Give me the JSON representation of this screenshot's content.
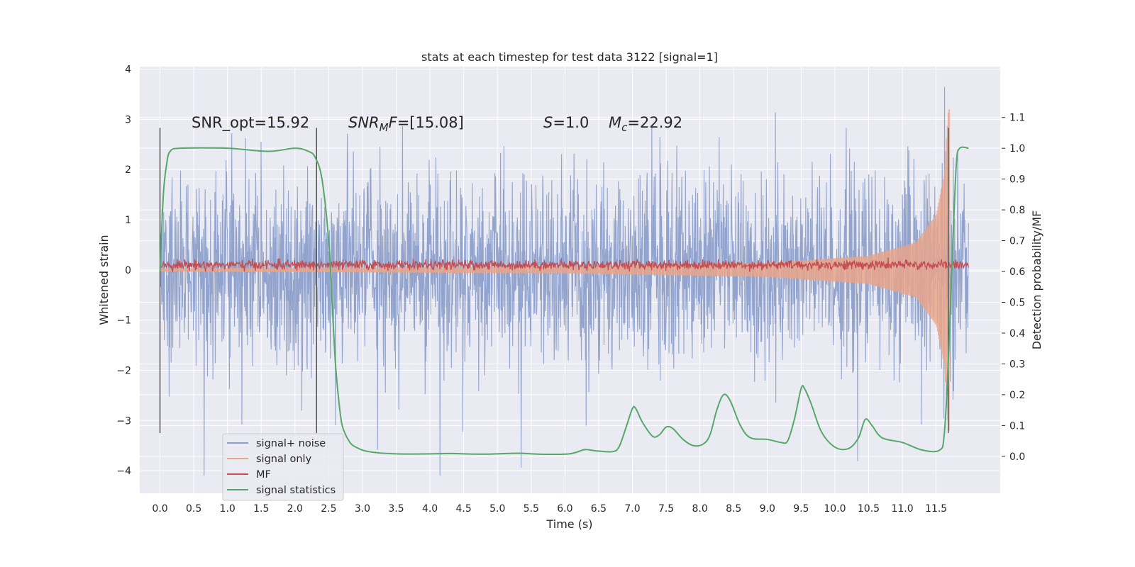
{
  "chart_data": {
    "type": "line",
    "title": "stats at each timestep for test data 3122 [signal=1]",
    "xlabel": "Time (s)",
    "ylabel": "Whitened strain",
    "y2label": "Detection probability/MF",
    "xlim": [
      -0.3,
      12.45
    ],
    "ylim": [
      -4.45,
      4.05
    ],
    "y2lim": [
      -0.12,
      1.265
    ],
    "x_ticks": [
      "0.0",
      "0.5",
      "1.0",
      "1.5",
      "2.0",
      "2.5",
      "3.0",
      "3.5",
      "4.0",
      "4.5",
      "5.0",
      "5.5",
      "6.0",
      "6.5",
      "7.0",
      "7.5",
      "8.0",
      "8.5",
      "9.0",
      "9.5",
      "10.0",
      "10.5",
      "11.0",
      "11.5"
    ],
    "y_ticks": [
      "−4",
      "−3",
      "−2",
      "−1",
      "0",
      "1",
      "2",
      "3",
      "4"
    ],
    "y2_ticks": [
      "0.0",
      "0.1",
      "0.2",
      "0.3",
      "0.4",
      "0.5",
      "0.6",
      "0.7",
      "0.8",
      "0.9",
      "1.0",
      "1.1"
    ],
    "grid": true,
    "legend_position": "lower-left",
    "annotations": {
      "snr_opt": "SNR_opt=15.92",
      "snr_mf_main": "SNR",
      "snr_mf_sub": "M",
      "snr_mf_rest_it": "F",
      "snr_mf_value": "=[15.08]",
      "s_main": "S",
      "s_value": "=1.0",
      "mc_main": "M",
      "mc_sub": "c",
      "mc_value": "=22.92"
    },
    "vertical_markers": [
      {
        "x": 0.0,
        "y": [
          -3.25,
          2.83
        ]
      },
      {
        "x": 2.32,
        "y": [
          -3.25,
          2.83
        ]
      },
      {
        "x": 11.68,
        "y": [
          -3.25,
          2.83
        ]
      }
    ],
    "series": [
      {
        "name": "signal+ noise",
        "color": "#8da0cb",
        "style": "dense noise band",
        "x_range": [
          0.0,
          11.98
        ],
        "envelope_typical": [
          -2.0,
          2.1
        ],
        "envelope_peak": [
          -4.1,
          3.65
        ]
      },
      {
        "name": "signal only",
        "color": "#e8a58a",
        "style": "chirp",
        "x_range": [
          0.0,
          11.7
        ],
        "amplitude_points": [
          [
            0.0,
            0.03
          ],
          [
            6.0,
            0.07
          ],
          [
            9.0,
            0.14
          ],
          [
            10.5,
            0.28
          ],
          [
            11.2,
            0.55
          ],
          [
            11.5,
            1.1
          ],
          [
            11.62,
            1.9
          ],
          [
            11.68,
            3.2
          ]
        ]
      },
      {
        "name": "MF",
        "color": "#c44e52",
        "style": "noisy line",
        "x_range": [
          0.0,
          11.98
        ],
        "mean": 0.1,
        "spread": 0.08
      },
      {
        "name": "signal statistics",
        "color": "#55a868",
        "points": [
          [
            0.0,
            0.6
          ],
          [
            0.05,
            0.85
          ],
          [
            0.1,
            0.95
          ],
          [
            0.15,
            0.99
          ],
          [
            0.3,
            1.0
          ],
          [
            1.0,
            1.0
          ],
          [
            1.6,
            0.99
          ],
          [
            2.0,
            1.0
          ],
          [
            2.2,
            0.99
          ],
          [
            2.3,
            0.97
          ],
          [
            2.4,
            0.9
          ],
          [
            2.5,
            0.7
          ],
          [
            2.55,
            0.5
          ],
          [
            2.6,
            0.3
          ],
          [
            2.65,
            0.18
          ],
          [
            2.7,
            0.1
          ],
          [
            2.8,
            0.05
          ],
          [
            2.9,
            0.03
          ],
          [
            3.1,
            0.015
          ],
          [
            3.5,
            0.008
          ],
          [
            4.0,
            0.008
          ],
          [
            4.3,
            0.009
          ],
          [
            4.8,
            0.007
          ],
          [
            5.3,
            0.01
          ],
          [
            5.6,
            0.007
          ],
          [
            6.0,
            0.007
          ],
          [
            6.15,
            0.012
          ],
          [
            6.3,
            0.022
          ],
          [
            6.45,
            0.018
          ],
          [
            6.7,
            0.015
          ],
          [
            6.8,
            0.03
          ],
          [
            6.9,
            0.09
          ],
          [
            7.0,
            0.155
          ],
          [
            7.05,
            0.155
          ],
          [
            7.15,
            0.11
          ],
          [
            7.3,
            0.065
          ],
          [
            7.4,
            0.07
          ],
          [
            7.5,
            0.095
          ],
          [
            7.6,
            0.09
          ],
          [
            7.75,
            0.055
          ],
          [
            7.9,
            0.035
          ],
          [
            8.05,
            0.04
          ],
          [
            8.15,
            0.07
          ],
          [
            8.25,
            0.15
          ],
          [
            8.35,
            0.2
          ],
          [
            8.45,
            0.18
          ],
          [
            8.6,
            0.1
          ],
          [
            8.75,
            0.06
          ],
          [
            9.0,
            0.055
          ],
          [
            9.2,
            0.045
          ],
          [
            9.3,
            0.05
          ],
          [
            9.4,
            0.12
          ],
          [
            9.5,
            0.22
          ],
          [
            9.55,
            0.22
          ],
          [
            9.65,
            0.17
          ],
          [
            9.8,
            0.08
          ],
          [
            10.0,
            0.03
          ],
          [
            10.2,
            0.025
          ],
          [
            10.35,
            0.06
          ],
          [
            10.45,
            0.12
          ],
          [
            10.55,
            0.1
          ],
          [
            10.7,
            0.06
          ],
          [
            11.0,
            0.045
          ],
          [
            11.3,
            0.02
          ],
          [
            11.55,
            0.02
          ],
          [
            11.62,
            0.07
          ],
          [
            11.68,
            0.3
          ],
          [
            11.75,
            0.7
          ],
          [
            11.8,
            0.95
          ],
          [
            11.85,
            1.0
          ],
          [
            11.98,
            1.0
          ]
        ]
      }
    ]
  }
}
